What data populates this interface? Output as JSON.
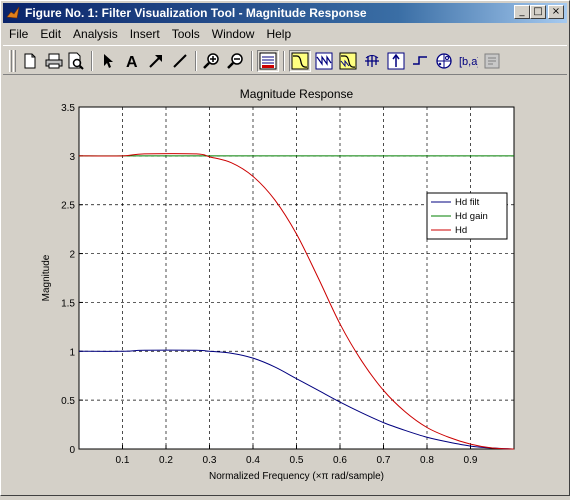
{
  "window": {
    "title": "Figure No. 1: Filter Visualization Tool - Magnitude Response",
    "controls": [
      "_",
      "□",
      "×"
    ]
  },
  "menu": [
    "File",
    "Edit",
    "Analysis",
    "Insert",
    "Tools",
    "Window",
    "Help"
  ],
  "toolbar": {
    "buttons": [
      "new-icon",
      "print-icon",
      "print-preview-icon",
      "select-arrow-icon",
      "text-icon",
      "arrow-icon",
      "line-icon",
      "zoom-in-icon",
      "zoom-out-icon",
      "filter-specs-icon",
      "magnitude-response-icon",
      "phase-response-icon",
      "magnitude-phase-icon",
      "group-delay-icon",
      "impulse-response-icon",
      "step-response-icon",
      "pole-zero-icon",
      "coefficients-icon",
      "filter-info-icon"
    ]
  },
  "chart_data": {
    "type": "line",
    "title": "Magnitude Response",
    "xlabel": "Normalized Frequency  (×π rad/sample)",
    "ylabel": "Magnitude",
    "xlim": [
      0,
      1
    ],
    "ylim": [
      0,
      3.5
    ],
    "xticks": [
      "0.1",
      "0.2",
      "0.3",
      "0.4",
      "0.5",
      "0.6",
      "0.7",
      "0.8",
      "0.9"
    ],
    "yticks": [
      "0",
      "0.5",
      "1",
      "1.5",
      "2",
      "2.5",
      "3",
      "3.5"
    ],
    "grid": true,
    "legend_position": "right",
    "series": [
      {
        "name": "Hd filt",
        "color": "#00007f",
        "x": [
          0,
          0.1,
          0.15,
          0.27,
          0.3,
          0.35,
          0.4,
          0.45,
          0.5,
          0.55,
          0.6,
          0.65,
          0.7,
          0.75,
          0.8,
          0.85,
          0.9,
          0.95,
          1.0
        ],
        "y": [
          1.0,
          1.0,
          1.01,
          1.01,
          1.0,
          0.98,
          0.93,
          0.84,
          0.72,
          0.6,
          0.48,
          0.37,
          0.27,
          0.19,
          0.12,
          0.07,
          0.03,
          0.01,
          0.0
        ]
      },
      {
        "name": "Hd gain",
        "color": "#007f00",
        "x": [
          0,
          1
        ],
        "y": [
          3.0,
          3.0
        ]
      },
      {
        "name": "Hd",
        "color": "#cc0000",
        "x": [
          0,
          0.1,
          0.15,
          0.27,
          0.3,
          0.35,
          0.4,
          0.45,
          0.5,
          0.55,
          0.6,
          0.65,
          0.7,
          0.75,
          0.8,
          0.85,
          0.9,
          0.95,
          1.0
        ],
        "y": [
          3.0,
          3.0,
          3.02,
          3.02,
          2.99,
          2.93,
          2.79,
          2.55,
          2.2,
          1.75,
          1.28,
          0.9,
          0.6,
          0.38,
          0.22,
          0.12,
          0.05,
          0.01,
          0.0
        ]
      }
    ]
  }
}
